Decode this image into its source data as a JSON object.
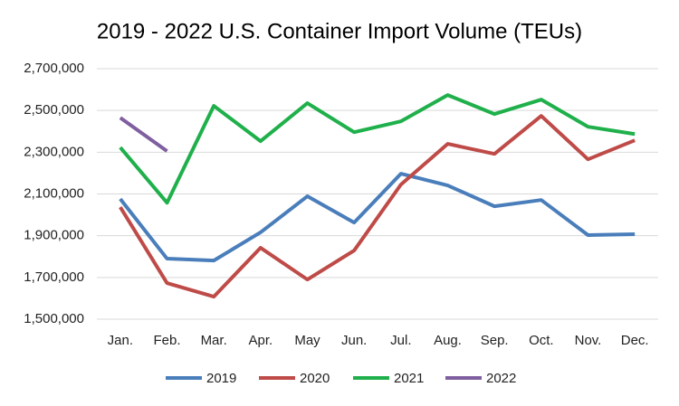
{
  "chart_data": {
    "type": "line",
    "title": "2019 - 2022 U.S. Container Import Volume (TEUs)",
    "categories": [
      "Jan.",
      "Feb.",
      "Mar.",
      "Apr.",
      "May",
      "Jun.",
      "Jul.",
      "Aug.",
      "Sep.",
      "Oct.",
      "Nov.",
      "Dec."
    ],
    "series": [
      {
        "name": "2019",
        "color": "#4a7ebb",
        "values": [
          2076000,
          1790000,
          1781000,
          1916000,
          2089000,
          1963000,
          2197000,
          2141000,
          2041000,
          2071000,
          1903000,
          1907000
        ]
      },
      {
        "name": "2020",
        "color": "#be4b48",
        "values": [
          2037000,
          1673000,
          1608000,
          1842000,
          1690000,
          1829000,
          2145000,
          2340000,
          2292000,
          2474000,
          2266000,
          2357000
        ]
      },
      {
        "name": "2021",
        "color": "#1fb04b",
        "values": [
          2323000,
          2058000,
          2522000,
          2353000,
          2535000,
          2396000,
          2448000,
          2574000,
          2483000,
          2552000,
          2422000,
          2387000
        ]
      },
      {
        "name": "2022",
        "color": "#7f5f9f",
        "values": [
          2465000,
          2305000,
          null,
          null,
          null,
          null,
          null,
          null,
          null,
          null,
          null,
          null
        ]
      }
    ],
    "ylim": [
      1500000,
      2700000
    ],
    "yticks": [
      {
        "value": 1500000,
        "label": "1,500,000"
      },
      {
        "value": 1700000,
        "label": "1,700,000"
      },
      {
        "value": 1900000,
        "label": "1,900,000"
      },
      {
        "value": 2100000,
        "label": "2,100,000"
      },
      {
        "value": 2300000,
        "label": "2,300,000"
      },
      {
        "value": 2500000,
        "label": "2,500,000"
      },
      {
        "value": 2700000,
        "label": "2,700,000"
      }
    ],
    "grid": true,
    "legend": "bottom"
  }
}
